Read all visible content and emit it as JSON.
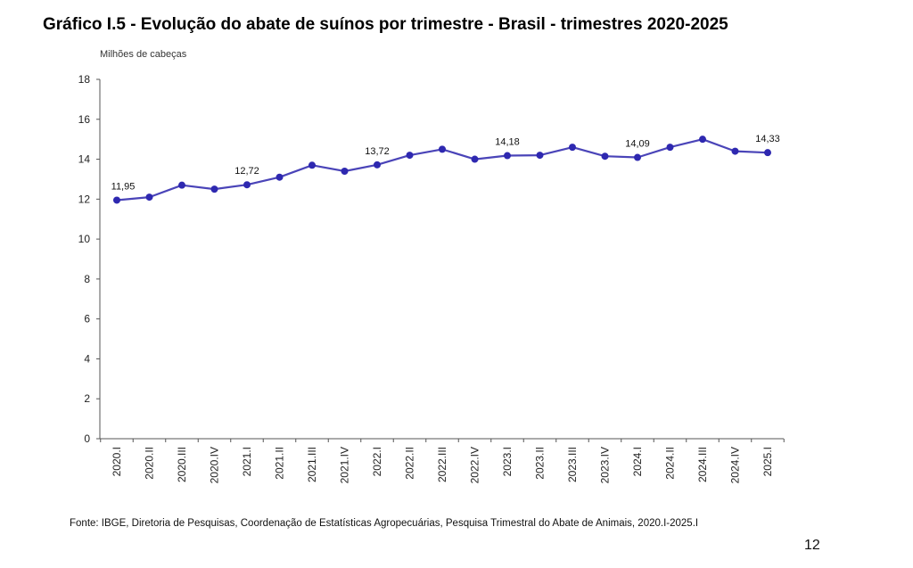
{
  "title": "Gráfico I.5 - Evolução do abate de suínos por trimestre - Brasil - trimestres 2020-2025",
  "source": "Fonte: IBGE, Diretoria de Pesquisas, Coordenação de Estatísticas Agropecuárias, Pesquisa Trimestral do Abate de Animais, 2020.I-2025.I",
  "page_number": "12",
  "colors": {
    "line": "#4a44b8",
    "marker": "#2e28b0",
    "axis": "#555555"
  },
  "chart_data": {
    "type": "line",
    "ylabel": "Milhões de cabeças",
    "xlabel": "",
    "ylim": [
      0,
      18
    ],
    "yticks": [
      "0",
      "2",
      "4",
      "6",
      "8",
      "10",
      "12",
      "14",
      "16",
      "18"
    ],
    "grid": false,
    "categories": [
      "2020.I",
      "2020.II",
      "2020.III",
      "2020.IV",
      "2021.I",
      "2021.II",
      "2021.III",
      "2021.IV",
      "2022.I",
      "2022.II",
      "2022.III",
      "2022.IV",
      "2023.I",
      "2023.II",
      "2023.III",
      "2023.IV",
      "2024.I",
      "2024.II",
      "2024.III",
      "2024.IV",
      "2025.I"
    ],
    "series": [
      {
        "values": [
          11.95,
          12.1,
          12.7,
          12.5,
          12.72,
          13.1,
          13.7,
          13.4,
          13.72,
          14.2,
          14.5,
          14.0,
          14.18,
          14.2,
          14.6,
          14.15,
          14.09,
          14.6,
          15.0,
          14.4,
          14.33
        ]
      }
    ],
    "data_labels": [
      {
        "index": 0,
        "text": "11,95"
      },
      {
        "index": 4,
        "text": "12,72"
      },
      {
        "index": 8,
        "text": "13,72"
      },
      {
        "index": 12,
        "text": "14,18"
      },
      {
        "index": 16,
        "text": "14,09"
      },
      {
        "index": 20,
        "text": "14,33"
      }
    ]
  }
}
